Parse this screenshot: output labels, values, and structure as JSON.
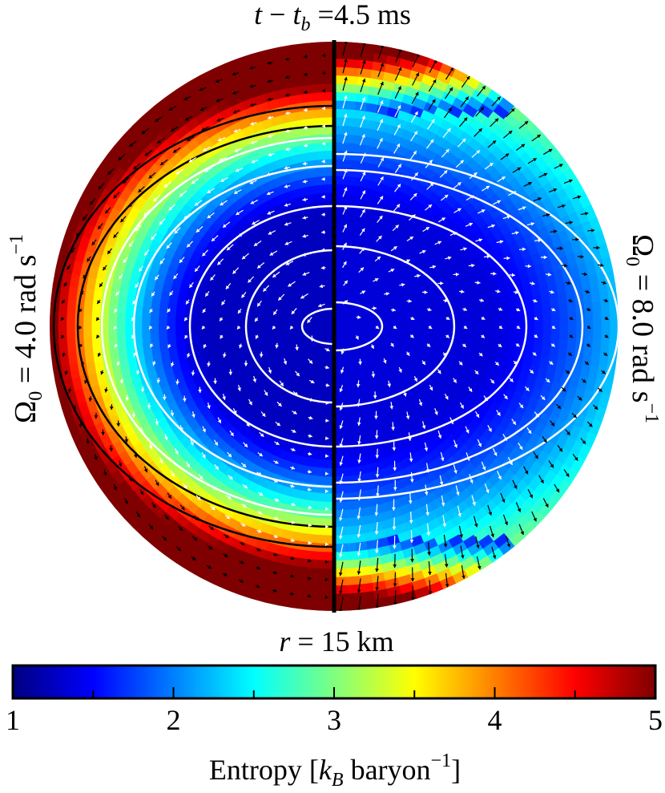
{
  "chart_data": {
    "type": "heatmap",
    "title": {
      "lhs_var": "t",
      "lhs_sub_var": "t",
      "lhs_sub": "b",
      "value": "4.5",
      "unit": "ms"
    },
    "left_panel_label": {
      "omega_sub": "0",
      "value": "4.0",
      "unit": "rad s",
      "exponent": "−1"
    },
    "right_panel_label": {
      "omega_sub": "0",
      "value": "8.0",
      "unit": "rad s",
      "exponent": "−1"
    },
    "scale_label": {
      "var": "r",
      "value": "15",
      "unit": "km"
    },
    "colorbar": {
      "label_prefix": "Entropy",
      "label_var": "k",
      "label_sub": "B",
      "label_unit": "baryon",
      "label_exponent": "−1",
      "min": 1,
      "max": 5,
      "ticks": [
        "1",
        "2",
        "3",
        "4",
        "5"
      ],
      "colormap": "jet",
      "colors": [
        "#00007f",
        "#0000ff",
        "#007fff",
        "#00ffff",
        "#7fff7f",
        "#ffff00",
        "#ff7f00",
        "#ff0000",
        "#7f0000"
      ]
    },
    "panels": [
      {
        "side": "left",
        "omega": 4.0,
        "core_entropy": 1.3,
        "outer_entropy": 5.0,
        "contour_levels_white": 5,
        "contour_levels_black": 2
      },
      {
        "side": "right",
        "omega": 8.0,
        "core_entropy": 1.4,
        "outer_entropy": 5.0,
        "contour_levels_white": 5,
        "contour_levels_black": 0
      }
    ],
    "arrow_colors": {
      "inner": "#ffffff",
      "outer": "#000000"
    }
  }
}
